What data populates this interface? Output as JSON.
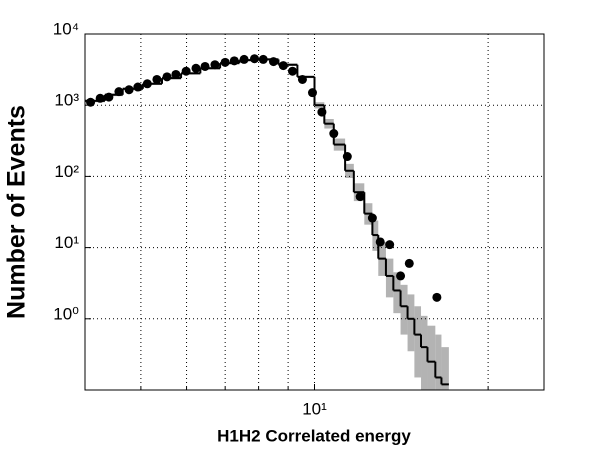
{
  "chart_data": {
    "type": "scatter",
    "x_label": "H1H2 Correlated energy",
    "y_label": "Number of Events",
    "log_x": true,
    "log_y": true,
    "grid": true,
    "xlim": [
      4,
      25
    ],
    "ylim": [
      0.1,
      10000
    ],
    "xticks": [
      {
        "value": 10,
        "label": "10¹"
      }
    ],
    "x_minor_ticks": [
      5,
      6,
      7,
      8,
      9,
      20
    ],
    "yticks": [
      {
        "value": 1,
        "label": "10⁰"
      },
      {
        "value": 10,
        "label": "10¹"
      },
      {
        "value": 100,
        "label": "10²"
      },
      {
        "value": 1000,
        "label": "10³"
      },
      {
        "value": 10000,
        "label": "10⁴"
      }
    ],
    "points": {
      "color": "#000000",
      "x": [
        4.09,
        4.25,
        4.4,
        4.58,
        4.77,
        4.94,
        5.13,
        5.33,
        5.55,
        5.75,
        5.99,
        6.23,
        6.46,
        6.72,
        7.0,
        7.26,
        7.55,
        7.87,
        8.15,
        8.49,
        8.83,
        9.16,
        9.53,
        9.92,
        10.3,
        10.8,
        11.4,
        12.0,
        12.6,
        13.0,
        13.5,
        14.1,
        14.6,
        16.3
      ],
      "values": [
        1100,
        1250,
        1300,
        1550,
        1650,
        1800,
        2000,
        2300,
        2500,
        2700,
        3000,
        3300,
        3500,
        3700,
        4000,
        4200,
        4400,
        4500,
        4400,
        4100,
        3600,
        3000,
        2300,
        1500,
        800,
        400,
        190,
        52,
        26,
        12,
        11,
        4,
        6,
        2
      ]
    },
    "histogram": {
      "color": "#000000",
      "band_color": "#b3b3b3",
      "bins": [
        4.0,
        4.33,
        4.65,
        5.04,
        5.44,
        5.87,
        6.34,
        6.86,
        7.41,
        7.99,
        8.66,
        9.34,
        10,
        10.4,
        10.8,
        11.3,
        11.7,
        12.2,
        12.6,
        12.9,
        13.3,
        13.7,
        14.1,
        14.5,
        14.9,
        15.3,
        15.7,
        16.2,
        16.6,
        17.1
      ],
      "values": [
        1150,
        1400,
        1700,
        2000,
        2400,
        2800,
        3300,
        3900,
        4300,
        4400,
        3700,
        2500,
        1000,
        550,
        280,
        120,
        60,
        30,
        15,
        7,
        4,
        2.5,
        1.5,
        1.0,
        0.6,
        0.4,
        0.25,
        0.15,
        0.12
      ],
      "band_low": [
        1100,
        1340,
        1630,
        1920,
        2300,
        2700,
        3170,
        3750,
        4130,
        4230,
        3550,
        2400,
        900,
        470,
        230,
        95,
        45,
        21,
        9,
        4,
        2,
        1.2,
        0.6,
        0.35,
        0.15,
        0.08,
        0.04,
        0.03,
        0.02
      ],
      "band_high": [
        1200,
        1460,
        1770,
        2080,
        2500,
        2910,
        3430,
        4050,
        4470,
        4570,
        3850,
        2600,
        1100,
        640,
        340,
        150,
        80,
        42,
        24,
        12,
        7,
        4.5,
        3,
        2.2,
        1.5,
        1.1,
        0.8,
        0.6,
        0.4
      ]
    }
  }
}
